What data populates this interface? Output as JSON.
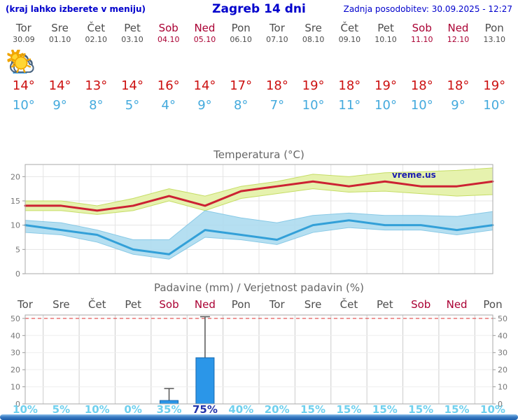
{
  "header": {
    "left_note": "(kraj lahko izberete v meniju)",
    "title": "Zagreb 14 dni",
    "updated": "Zadnja posodobitev: 30.09.2025 - 12:27"
  },
  "colors": {
    "header_blue": "#0000cc",
    "max_temp_red": "#cc1111",
    "min_temp_blue": "#44aadd",
    "weekend_red": "#aa0033",
    "weekday_gray": "#4d4d4d",
    "bar_blue": "#2b96e8",
    "bar_border": "#1668b0",
    "prob_cyan": "#6fd0ee",
    "prob_navy": "#2233aa",
    "band_green": "#e6f2ae",
    "band_green_edge": "#c6dd66",
    "band_blue": "#aedcf0",
    "band_blue_edge": "#7cc4e4"
  },
  "days": [
    {
      "name": "Tor",
      "date": "30.09",
      "weekend": false,
      "icon": "rain",
      "tmax": "14°",
      "tmin": "10°"
    },
    {
      "name": "Sre",
      "date": "01.10",
      "weekend": false,
      "icon": "partly-cloudy",
      "tmax": "14°",
      "tmin": "9°"
    },
    {
      "name": "Čet",
      "date": "02.10",
      "weekend": false,
      "icon": "partly-cloudy",
      "tmax": "13°",
      "tmin": "8°"
    },
    {
      "name": "Pet",
      "date": "03.10",
      "weekend": false,
      "icon": "sunny",
      "tmax": "14°",
      "tmin": "5°"
    },
    {
      "name": "Sob",
      "date": "04.10",
      "weekend": true,
      "icon": "heavy-rain",
      "tmax": "16°",
      "tmin": "4°"
    },
    {
      "name": "Ned",
      "date": "05.10",
      "weekend": true,
      "icon": "sun-rain",
      "tmax": "14°",
      "tmin": "9°"
    },
    {
      "name": "Pon",
      "date": "06.10",
      "weekend": false,
      "icon": "cloudy",
      "tmax": "17°",
      "tmin": "8°"
    },
    {
      "name": "Tor",
      "date": "07.10",
      "weekend": false,
      "icon": "partly-cloudy",
      "tmax": "18°",
      "tmin": "7°"
    },
    {
      "name": "Sre",
      "date": "08.10",
      "weekend": false,
      "icon": "sunny",
      "tmax": "19°",
      "tmin": "10°"
    },
    {
      "name": "Čet",
      "date": "09.10",
      "weekend": false,
      "icon": "sunny",
      "tmax": "18°",
      "tmin": "11°"
    },
    {
      "name": "Pet",
      "date": "10.10",
      "weekend": false,
      "icon": "sunny",
      "tmax": "19°",
      "tmin": "10°"
    },
    {
      "name": "Sob",
      "date": "11.10",
      "weekend": true,
      "icon": "sunny",
      "tmax": "18°",
      "tmin": "10°"
    },
    {
      "name": "Ned",
      "date": "12.10",
      "weekend": true,
      "icon": "sunny",
      "tmax": "18°",
      "tmin": "9°"
    },
    {
      "name": "Pon",
      "date": "13.10",
      "weekend": false,
      "icon": "sunny",
      "tmax": "19°",
      "tmin": "10°"
    }
  ],
  "chart_data": [
    {
      "type": "line",
      "title": "Temperatura (°C)",
      "watermark": "vreme.us",
      "categories": [
        "Tor",
        "Sre",
        "Čet",
        "Pet",
        "Sob",
        "Ned",
        "Pon",
        "Tor",
        "Sre",
        "Čet",
        "Pet",
        "Sob",
        "Ned",
        "Pon"
      ],
      "ylim": [
        0,
        22.5
      ],
      "yticks": [
        0,
        5,
        10,
        15,
        20
      ],
      "legend": "off",
      "grid": "on",
      "series": [
        {
          "name": "max",
          "color": "#cc2233",
          "values": [
            14,
            14,
            13,
            14,
            16,
            14,
            17,
            18,
            19,
            18,
            19,
            18,
            18,
            19
          ]
        },
        {
          "name": "min",
          "color": "#33a0d8",
          "values": [
            10,
            9,
            8,
            5,
            4,
            9,
            8,
            7,
            10,
            11,
            10,
            10,
            9,
            10
          ]
        },
        {
          "name": "max_range_high",
          "values": [
            15,
            15,
            14,
            15.5,
            17.5,
            16,
            18,
            19,
            20.5,
            20,
            20.8,
            21,
            21.3,
            21.8
          ]
        },
        {
          "name": "max_range_low",
          "values": [
            13,
            13,
            12.2,
            13,
            15,
            13,
            15.5,
            16.5,
            17.5,
            16.8,
            17,
            16.5,
            16,
            16.3
          ]
        },
        {
          "name": "min_range_high",
          "values": [
            11,
            10.5,
            9,
            7,
            7,
            13,
            11.5,
            10.5,
            12,
            12.5,
            12,
            12,
            11.8,
            12.8
          ]
        },
        {
          "name": "min_range_low",
          "values": [
            8.5,
            8,
            6.5,
            4,
            3,
            7.5,
            7,
            6,
            8.5,
            9.5,
            9,
            9,
            8,
            9
          ]
        }
      ]
    },
    {
      "type": "bar",
      "title": "Padavine (mm) / Verjetnost padavin (%)",
      "categories": [
        "Tor",
        "Sre",
        "Čet",
        "Pet",
        "Sob",
        "Ned",
        "Pon",
        "Tor",
        "Sre",
        "Čet",
        "Pet",
        "Sob",
        "Ned",
        "Pon"
      ],
      "weekend": [
        false,
        false,
        false,
        false,
        true,
        true,
        false,
        false,
        false,
        false,
        false,
        true,
        true,
        false
      ],
      "values": [
        0,
        0,
        0,
        0,
        2,
        27,
        0,
        0,
        0,
        0,
        0,
        0,
        0,
        0
      ],
      "whisker_high": [
        0,
        0,
        0,
        0,
        9,
        51,
        0,
        0,
        0,
        0,
        0,
        0,
        0,
        0
      ],
      "probabilities": [
        "10%",
        "5%",
        "10%",
        "0%",
        "35%",
        "75%",
        "40%",
        "20%",
        "15%",
        "15%",
        "15%",
        "15%",
        "15%",
        "10%"
      ],
      "highlight_index": 5,
      "ylim": [
        0,
        52
      ],
      "yticks": [
        0,
        10,
        20,
        30,
        40,
        50
      ],
      "redline": 50
    }
  ]
}
